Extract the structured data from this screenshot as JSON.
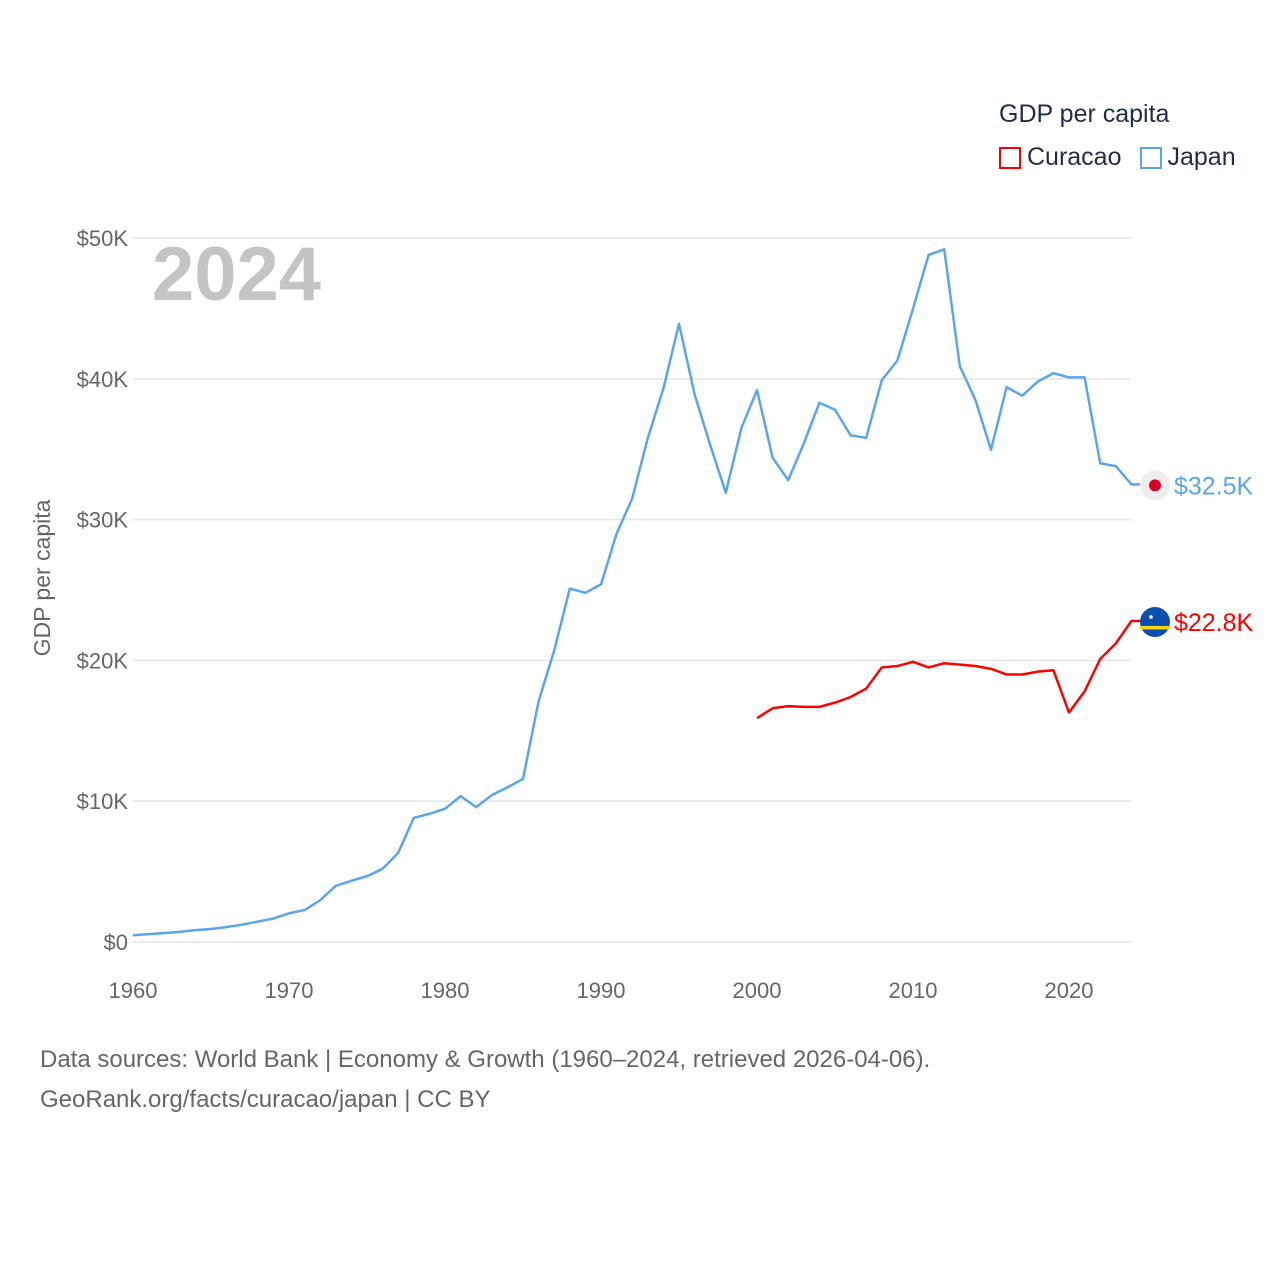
{
  "chart_data": {
    "type": "line",
    "title": "GDP per capita",
    "year_label": "2024",
    "xlabel": "",
    "ylabel": "GDP per capita",
    "xlim": [
      1960,
      2024
    ],
    "ylim": [
      0,
      50
    ],
    "x_ticks": [
      "1960",
      "1970",
      "1980",
      "1990",
      "2000",
      "2010",
      "2020"
    ],
    "y_ticks": [
      {
        "v": 0,
        "label": "$0"
      },
      {
        "v": 10,
        "label": "$10K"
      },
      {
        "v": 20,
        "label": "$20K"
      },
      {
        "v": 30,
        "label": "$30K"
      },
      {
        "v": 40,
        "label": "$40K"
      },
      {
        "v": 50,
        "label": "$50K"
      }
    ],
    "grid": true,
    "legend_position": "top-right",
    "series": [
      {
        "name": "Curacao",
        "color": "#ff0000",
        "start": 2000,
        "end_label": "$22.8K",
        "flag": "curacao-flag",
        "values": [
          15.9,
          16.6,
          16.75,
          16.7,
          16.7,
          17.0,
          17.4,
          18.0,
          19.5,
          19.6,
          19.9,
          19.5,
          19.8,
          19.7,
          19.6,
          19.4,
          19.0,
          19.0,
          19.2,
          19.3,
          16.3,
          17.8,
          20.1,
          21.2,
          22.8
        ]
      },
      {
        "name": "Japan",
        "color": "#5aa5eb",
        "start": 1960,
        "end_label": "$32.5K",
        "flag": "japan-flag",
        "values": [
          0.48,
          0.56,
          0.63,
          0.72,
          0.84,
          0.92,
          1.06,
          1.23,
          1.45,
          1.67,
          2.04,
          2.27,
          2.97,
          3.99,
          4.35,
          4.67,
          5.2,
          6.33,
          8.82,
          9.1,
          9.46,
          10.36,
          9.58,
          10.43,
          10.98,
          11.58,
          17.1,
          20.7,
          25.1,
          24.8,
          25.4,
          29.0,
          31.5,
          35.8,
          39.3,
          43.9,
          38.9,
          35.3,
          31.9,
          36.5,
          39.2,
          34.4,
          32.8,
          35.4,
          38.3,
          37.8,
          35.99,
          35.8,
          39.9,
          41.3,
          44.97,
          48.8,
          49.2,
          40.9,
          38.5,
          34.96,
          39.4,
          38.8,
          39.8,
          40.4,
          40.1,
          40.1,
          34.0,
          33.8,
          32.5
        ]
      }
    ]
  },
  "footer": {
    "line1": "Data sources: World Bank | Economy & Growth (1960–2024, retrieved 2026-04-06).",
    "line2": "GeoRank.org/facts/curacao/japan | CC BY"
  }
}
